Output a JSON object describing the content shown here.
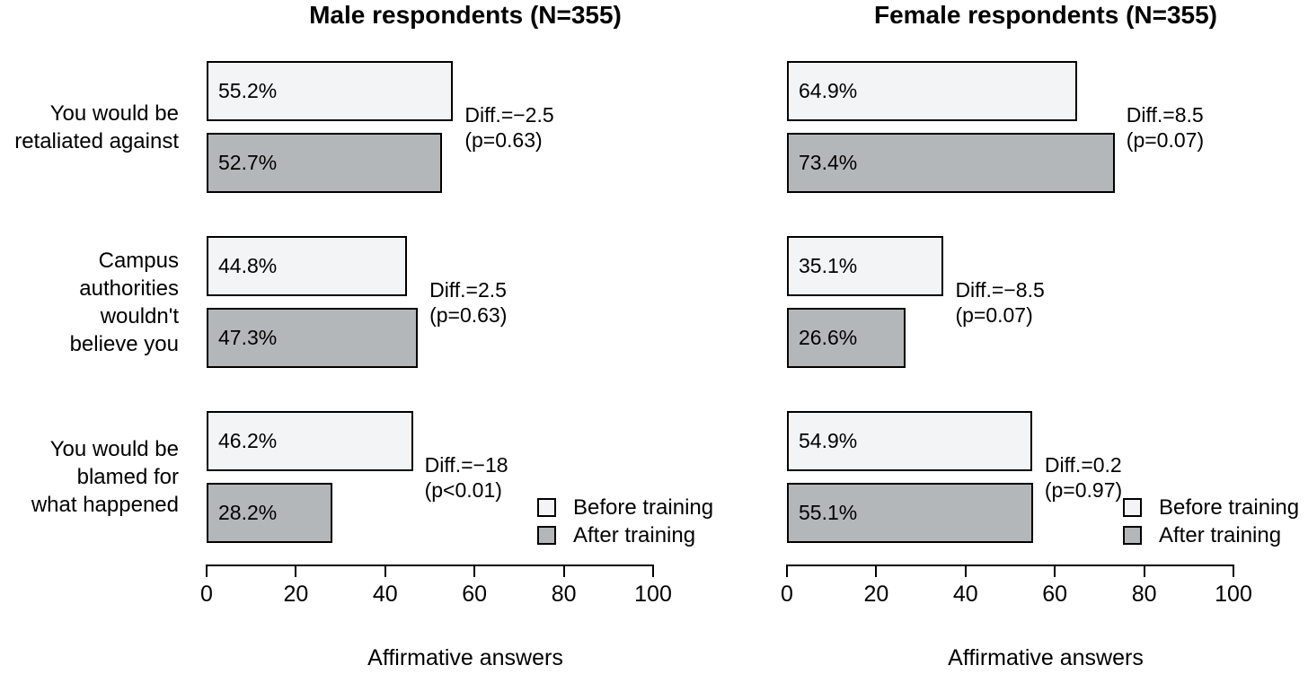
{
  "figure": {
    "background": "#ffffff",
    "text_color": "#000000",
    "colors": {
      "before_fill": "#f2f4f6",
      "after_fill": "#b4b7b9",
      "bar_border": "#000000",
      "axis": "#000000"
    },
    "legend": {
      "position": "bottom-right-of-each-panel",
      "items": [
        {
          "name": "before",
          "label": "Before training"
        },
        {
          "name": "after",
          "label": "After training"
        }
      ]
    }
  },
  "chart_data": [
    {
      "type": "bar",
      "orientation": "horizontal",
      "title": "Male respondents (N=355)",
      "xlabel": "Affirmative answers",
      "xlim": [
        0,
        100
      ],
      "x_ticks": [
        0,
        20,
        40,
        60,
        80,
        100
      ],
      "grid": false,
      "show_category_labels": true,
      "categories": [
        {
          "name": "retaliated",
          "label_lines": [
            "You would be",
            "retaliated against"
          ]
        },
        {
          "name": "not-believed",
          "label_lines": [
            "Campus",
            "authorities",
            "wouldn't",
            "believe you"
          ]
        },
        {
          "name": "blamed",
          "label_lines": [
            "You would be",
            "blamed for",
            "what happened"
          ]
        }
      ],
      "series": [
        {
          "name": "Before training",
          "values": [
            55.2,
            44.8,
            46.2
          ],
          "value_labels": [
            "55.2%",
            "44.8%",
            "46.2%"
          ]
        },
        {
          "name": "After training",
          "values": [
            52.7,
            47.3,
            28.2
          ],
          "value_labels": [
            "52.7%",
            "47.3%",
            "28.2%"
          ]
        }
      ],
      "annotations": [
        {
          "lines": [
            "Diff.=−2.5",
            "(p=0.63)"
          ]
        },
        {
          "lines": [
            "Diff.=2.5",
            "(p=0.63)"
          ]
        },
        {
          "lines": [
            "Diff.=−18",
            "(p<0.01)"
          ]
        }
      ]
    },
    {
      "type": "bar",
      "orientation": "horizontal",
      "title": "Female respondents (N=355)",
      "xlabel": "Affirmative answers",
      "xlim": [
        0,
        100
      ],
      "x_ticks": [
        0,
        20,
        40,
        60,
        80,
        100
      ],
      "grid": false,
      "show_category_labels": false,
      "categories": [
        {
          "name": "retaliated",
          "label_lines": [
            "You would be",
            "retaliated against"
          ]
        },
        {
          "name": "not-believed",
          "label_lines": [
            "Campus",
            "authorities",
            "wouldn't",
            "believe you"
          ]
        },
        {
          "name": "blamed",
          "label_lines": [
            "You would be",
            "blamed for",
            "what happened"
          ]
        }
      ],
      "series": [
        {
          "name": "Before training",
          "values": [
            64.9,
            35.1,
            54.9
          ],
          "value_labels": [
            "64.9%",
            "35.1%",
            "54.9%"
          ]
        },
        {
          "name": "After training",
          "values": [
            73.4,
            26.6,
            55.1
          ],
          "value_labels": [
            "73.4%",
            "26.6%",
            "55.1%"
          ]
        }
      ],
      "annotations": [
        {
          "lines": [
            "Diff.=8.5",
            "(p=0.07)"
          ]
        },
        {
          "lines": [
            "Diff.=−8.5",
            "(p=0.07)"
          ]
        },
        {
          "lines": [
            "Diff.=0.2",
            "(p=0.97)"
          ]
        }
      ]
    }
  ]
}
